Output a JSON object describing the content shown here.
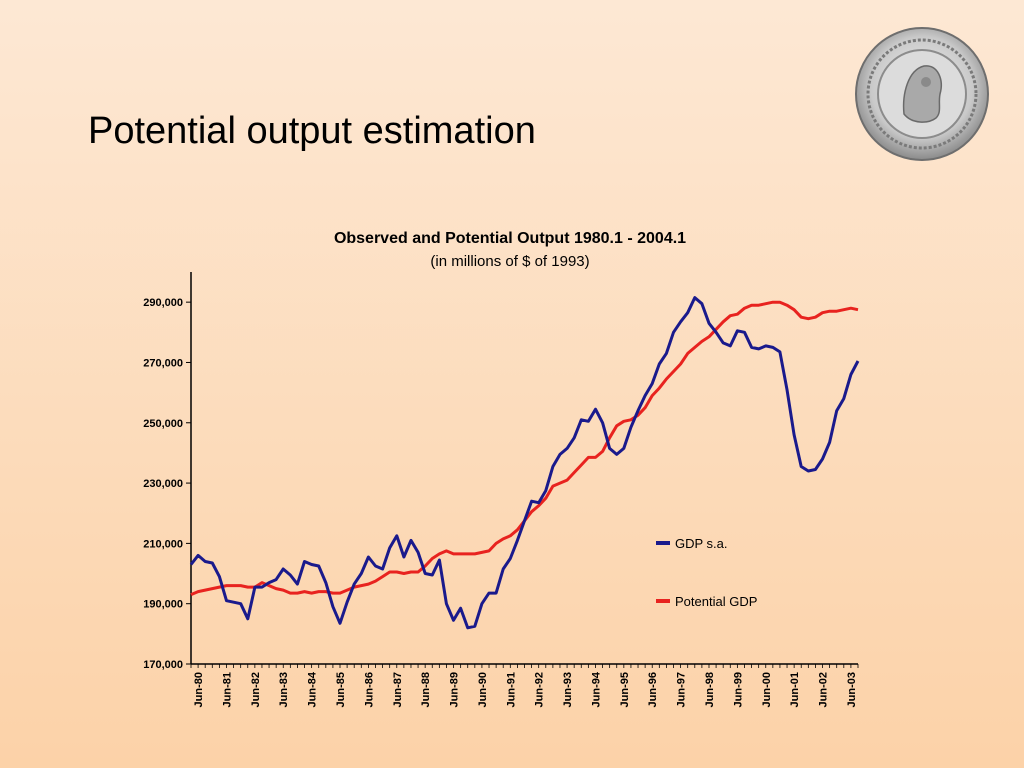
{
  "slide": {
    "title": "Potential output estimation"
  },
  "chart_data": {
    "type": "line",
    "title": "Observed and Potential Output  1980.1 - 2004.1",
    "subtitle": "(in millions of $ of 1993)",
    "xlabel": "",
    "ylabel": "",
    "ylim": [
      170000,
      300000
    ],
    "y_ticks": [
      "170,000",
      "190,000",
      "210,000",
      "230,000",
      "250,000",
      "270,000",
      "290,000"
    ],
    "y_tick_values": [
      170000,
      190000,
      210000,
      230000,
      250000,
      270000,
      290000
    ],
    "x_tick_labels": [
      "Jun-80",
      "Jun-81",
      "Jun-82",
      "Jun-83",
      "Jun-84",
      "Jun-85",
      "Jun-86",
      "Jun-87",
      "Jun-88",
      "Jun-89",
      "Jun-90",
      "Jun-91",
      "Jun-92",
      "Jun-93",
      "Jun-94",
      "Jun-95",
      "Jun-96",
      "Jun-97",
      "Jun-98",
      "Jun-99",
      "Jun-00",
      "Jun-01",
      "Jun-02",
      "Jun-03"
    ],
    "x_start": "1980.1",
    "x_end": "2004.1",
    "legend_position": "right",
    "grid": false,
    "series": [
      {
        "name": "GDP s.a.",
        "color": "#1a1a8c",
        "values": [
          203000,
          206000,
          204000,
          203500,
          199000,
          191000,
          190500,
          190000,
          185000,
          195500,
          195500,
          197000,
          198000,
          201500,
          199500,
          196500,
          204000,
          203000,
          202500,
          197000,
          189000,
          183500,
          190500,
          196500,
          200000,
          205500,
          202500,
          201500,
          208500,
          212500,
          205500,
          211000,
          207000,
          200000,
          199500,
          204500,
          190000,
          184500,
          188500,
          182000,
          182500,
          190000,
          193500,
          193500,
          201500,
          205000,
          211000,
          217500,
          224000,
          223500,
          227500,
          235500,
          239500,
          241500,
          245000,
          251000,
          250500,
          254500,
          250000,
          241500,
          239500,
          241500,
          248500,
          254000,
          259000,
          263000,
          269500,
          273000,
          280000,
          283500,
          286500,
          291500,
          289500,
          283000,
          280000,
          276500,
          275500,
          280500,
          280000,
          275000,
          274500,
          275500,
          275000,
          273500,
          261000,
          246000,
          235500,
          234000,
          234500,
          238000,
          243500,
          254000,
          258000,
          266000,
          270500
        ]
      },
      {
        "name": "Potential GDP",
        "color": "#e8231f",
        "values": [
          193000,
          194000,
          194500,
          195000,
          195500,
          196000,
          196000,
          196000,
          195500,
          195500,
          197000,
          196000,
          195000,
          194500,
          193500,
          193500,
          194000,
          193500,
          194000,
          194000,
          193500,
          193500,
          194500,
          195500,
          196000,
          196500,
          197500,
          199000,
          200500,
          200500,
          200000,
          200500,
          200500,
          202500,
          205000,
          206500,
          207500,
          206500,
          206500,
          206500,
          206500,
          207000,
          207500,
          210000,
          211500,
          212500,
          214500,
          217500,
          220500,
          222500,
          225000,
          229000,
          230000,
          231000,
          233500,
          236000,
          238500,
          238500,
          240500,
          245000,
          249000,
          250500,
          251000,
          252500,
          255000,
          259000,
          261500,
          264500,
          267000,
          269500,
          273000,
          275000,
          277000,
          278500,
          281000,
          283500,
          285500,
          286000,
          288000,
          289000,
          289000,
          289500,
          290000,
          290000,
          289000,
          287500,
          285000,
          284500,
          285000,
          286500,
          287000,
          287000,
          287500,
          288000,
          287500
        ]
      }
    ]
  }
}
